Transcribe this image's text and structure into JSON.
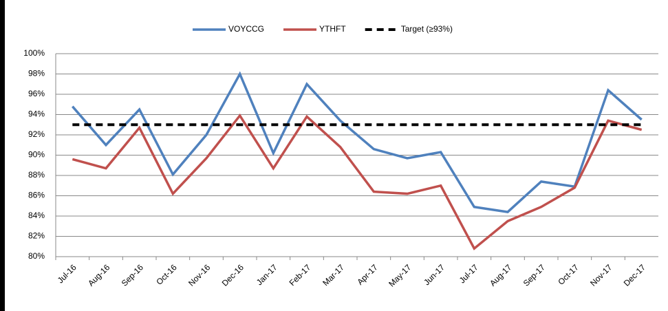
{
  "chart_data": {
    "type": "line",
    "categories": [
      "Jul-16",
      "Aug-16",
      "Sep-16",
      "Oct-16",
      "Nov-16",
      "Dec-16",
      "Jan-17",
      "Feb-17",
      "Mar-17",
      "Apr-17",
      "May-17",
      "Jun-17",
      "Jul-17",
      "Aug-17",
      "Sep-17",
      "Oct-17",
      "Nov-17",
      "Dec-17"
    ],
    "series": [
      {
        "name": "VOYCCG",
        "color": "#4f81bd",
        "values": [
          94.8,
          91.0,
          94.5,
          88.1,
          92.0,
          98.0,
          90.2,
          97.0,
          93.4,
          90.6,
          89.7,
          90.3,
          84.9,
          84.4,
          87.4,
          86.9,
          96.4,
          93.5
        ]
      },
      {
        "name": "YTHFT",
        "color": "#c0504d",
        "values": [
          89.6,
          88.7,
          92.7,
          86.2,
          89.7,
          93.9,
          88.7,
          93.8,
          90.8,
          86.4,
          86.2,
          87.0,
          80.8,
          83.5,
          84.9,
          86.8,
          93.4,
          92.5
        ]
      },
      {
        "name": "Target (≥93%)",
        "color": "#000000",
        "dashed": true,
        "values": [
          93,
          93,
          93,
          93,
          93,
          93,
          93,
          93,
          93,
          93,
          93,
          93,
          93,
          93,
          93,
          93,
          93,
          93
        ]
      }
    ],
    "ylim": [
      80,
      100
    ],
    "yticks": [
      {
        "value": 80,
        "label": "80%"
      },
      {
        "value": 82,
        "label": "82%"
      },
      {
        "value": 84,
        "label": "84%"
      },
      {
        "value": 86,
        "label": "86%"
      },
      {
        "value": 88,
        "label": "88%"
      },
      {
        "value": 90,
        "label": "90%"
      },
      {
        "value": 92,
        "label": "92%"
      },
      {
        "value": 94,
        "label": "94%"
      },
      {
        "value": 96,
        "label": "96%"
      },
      {
        "value": 98,
        "label": "98%"
      },
      {
        "value": 100,
        "label": "100%"
      }
    ],
    "grid": true,
    "legend": "top"
  }
}
